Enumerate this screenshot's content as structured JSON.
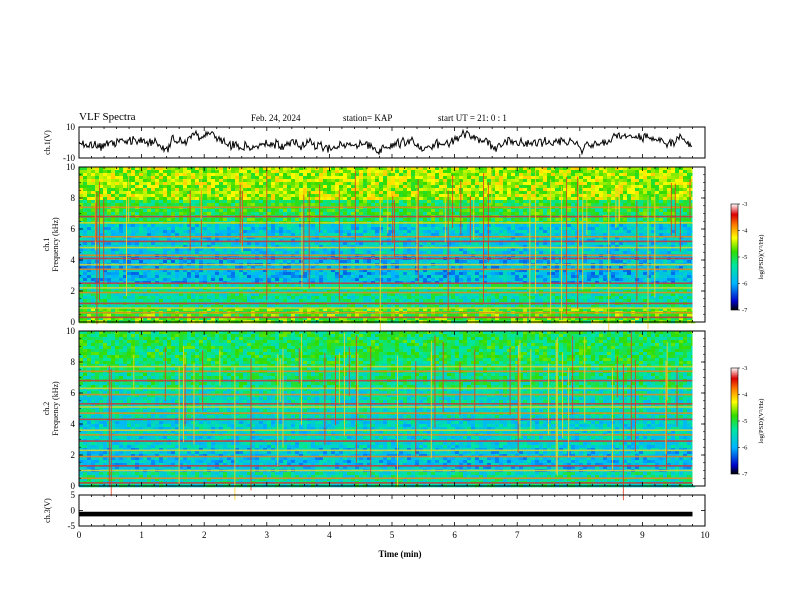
{
  "header": {
    "title": "VLF Spectra",
    "date": "Feb. 24, 2024",
    "station": "station= KAP",
    "start": "start  UT =   21: 0  : 1"
  },
  "chart_data": [
    {
      "type": "line",
      "name": "ch1-waveform",
      "ylabel": "ch.1(V)",
      "ylim": [
        -10,
        10
      ],
      "yticks": [
        "10",
        "-10"
      ],
      "x_range_min": [
        0,
        9.8
      ],
      "level_approx": 0
    },
    {
      "type": "heatmap",
      "name": "ch1-spectrogram",
      "ylabel": "ch.1\nFrequency (kHz)",
      "ylabel_line1": "ch.1",
      "ylabel_line2": "Frequency (kHz)",
      "ylim": [
        0,
        10
      ],
      "yticks": [
        "0",
        "2",
        "4",
        "6",
        "8",
        "10"
      ],
      "x_range_min": [
        0,
        9.8
      ],
      "bands_khz": [
        0.3,
        0.6,
        0.9,
        1.2,
        1.9,
        2.2,
        2.5,
        3.4,
        3.7,
        4.1,
        4.3,
        4.8,
        5.2,
        5.5,
        6.4,
        6.8,
        7.4
      ],
      "colorbar": {
        "label": "log(PSD)(V²/Hz)",
        "ticks": [
          "-3",
          "-4",
          "-5",
          "-6",
          "-7"
        ],
        "range": [
          -7,
          -3
        ]
      }
    },
    {
      "type": "heatmap",
      "name": "ch2-spectrogram",
      "ylabel_line1": "ch.2",
      "ylabel_line2": "Frequency (kHz)",
      "ylim": [
        0,
        10
      ],
      "yticks": [
        "0",
        "2",
        "4",
        "6",
        "8",
        "10"
      ],
      "x_range_min": [
        0,
        9.8
      ],
      "bands_khz": [
        0.2,
        0.5,
        1.0,
        1.3,
        1.9,
        2.3,
        2.9,
        3.3,
        3.6,
        4.3,
        4.7,
        5.1,
        5.3,
        5.9,
        6.3,
        6.8,
        7.4,
        7.7
      ],
      "colorbar": {
        "label": "log(PSD)(V²/Hz)",
        "ticks": [
          "-3",
          "-4",
          "-5",
          "-6",
          "-7"
        ],
        "range": [
          -7,
          -3
        ]
      }
    },
    {
      "type": "line",
      "name": "ch3-waveform",
      "ylabel": "ch.3(V)",
      "ylim": [
        -5,
        5
      ],
      "yticks": [
        "5",
        "0",
        "-5"
      ],
      "x_range_min": [
        0,
        9.8
      ],
      "level_approx": 0
    }
  ],
  "xaxis": {
    "label": "Time (min)",
    "ticks": [
      "0",
      "1",
      "2",
      "3",
      "4",
      "5",
      "6",
      "7",
      "8",
      "9",
      "10"
    ],
    "range": [
      0,
      10
    ]
  },
  "colors": {
    "axis": "#000000",
    "background": "#ffffff",
    "colormap": [
      "#000000",
      "#0000c8",
      "#00b4ff",
      "#00e6a0",
      "#32dc00",
      "#ffff00",
      "#ff8000",
      "#dc0000",
      "#ffffff"
    ]
  }
}
